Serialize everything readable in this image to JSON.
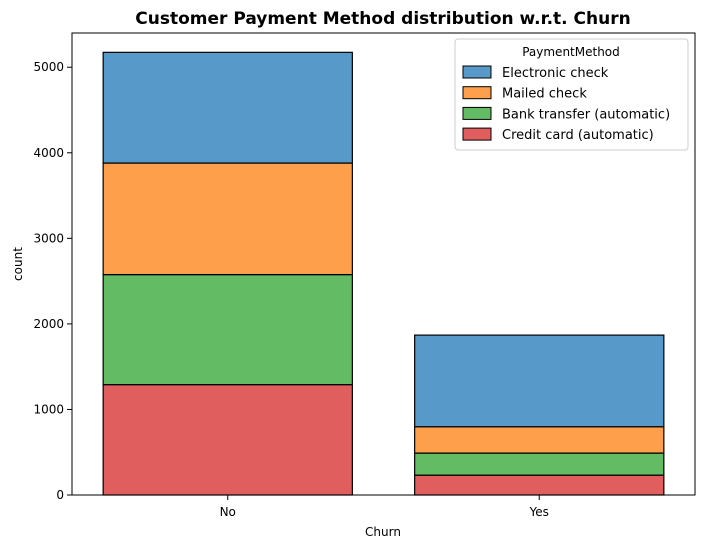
{
  "chart_data": {
    "type": "bar",
    "stacked": true,
    "title": "Customer Payment Method distribution w.r.t. Churn",
    "xlabel": "Churn",
    "ylabel": "count",
    "categories": [
      "No",
      "Yes"
    ],
    "ylim": [
      0,
      5400
    ],
    "yticks": [
      0,
      1000,
      2000,
      3000,
      4000,
      5000
    ],
    "grid": false,
    "legend": {
      "title": "PaymentMethod",
      "placement": "top-right"
    },
    "series": [
      {
        "name": "Credit card (automatic)",
        "color": "#e05f5e",
        "values": [
          1290,
          232
        ]
      },
      {
        "name": "Bank transfer (automatic)",
        "color": "#63bb63",
        "values": [
          1286,
          258
        ]
      },
      {
        "name": "Mailed check",
        "color": "#fe9f4c",
        "values": [
          1304,
          308
        ]
      },
      {
        "name": "Electronic check",
        "color": "#5799c8",
        "values": [
          1294,
          1071
        ]
      }
    ],
    "legend_order": [
      "Electronic check",
      "Mailed check",
      "Bank transfer (automatic)",
      "Credit card (automatic)"
    ]
  }
}
